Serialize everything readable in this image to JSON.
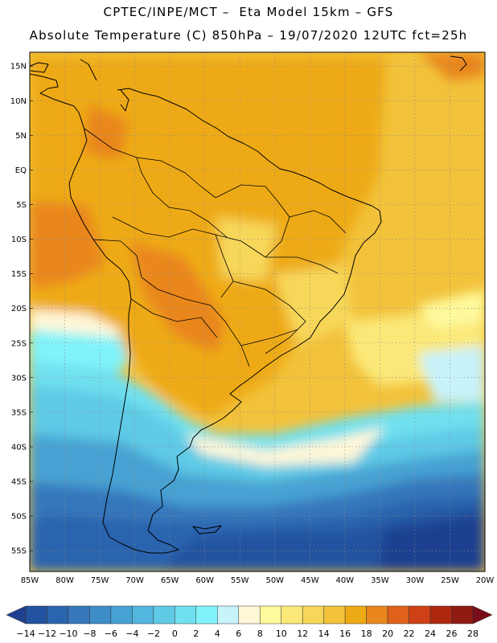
{
  "header": {
    "line1": "CPTEC/INPE/MCT –  Eta Model 15km – GFS",
    "line2": "Absolute Temperature (C) 850hPa – 19/07/2020 12UTC fct=25h"
  },
  "map": {
    "lon_range": [
      -85,
      -20
    ],
    "lat_range": [
      -58,
      17
    ],
    "lat_ticks": [
      "15N",
      "10N",
      "5N",
      "EQ",
      "5S",
      "10S",
      "15S",
      "20S",
      "25S",
      "30S",
      "35S",
      "40S",
      "45S",
      "50S",
      "55S"
    ],
    "lon_ticks": [
      "85W",
      "80W",
      "75W",
      "70W",
      "65W",
      "60W",
      "55W",
      "50W",
      "45W",
      "40W",
      "35W",
      "30W",
      "25W",
      "20W"
    ],
    "grid": "dotted",
    "field": "temperature_850hPa"
  },
  "colorbar": {
    "labels": [
      "-14",
      "-12",
      "-10",
      "-8",
      "-6",
      "-4",
      "-2",
      "0",
      "2",
      "4",
      "6",
      "8",
      "10",
      "12",
      "14",
      "16",
      "18",
      "20",
      "22",
      "24",
      "26",
      "28"
    ],
    "colors": [
      "#1f3f8f",
      "#2352a0",
      "#2a64ae",
      "#3677bc",
      "#3d8dc8",
      "#46a2d3",
      "#52b6de",
      "#5fcae6",
      "#6fe0ef",
      "#80f3fa",
      "#c8f3fb",
      "#fff7d8",
      "#fef99c",
      "#fbe878",
      "#f7d75a",
      "#f2c23b",
      "#eeaa14",
      "#e9861d",
      "#e0611a",
      "#cf4114",
      "#b0270f",
      "#8f1a12",
      "#7a0d1a"
    ]
  }
}
